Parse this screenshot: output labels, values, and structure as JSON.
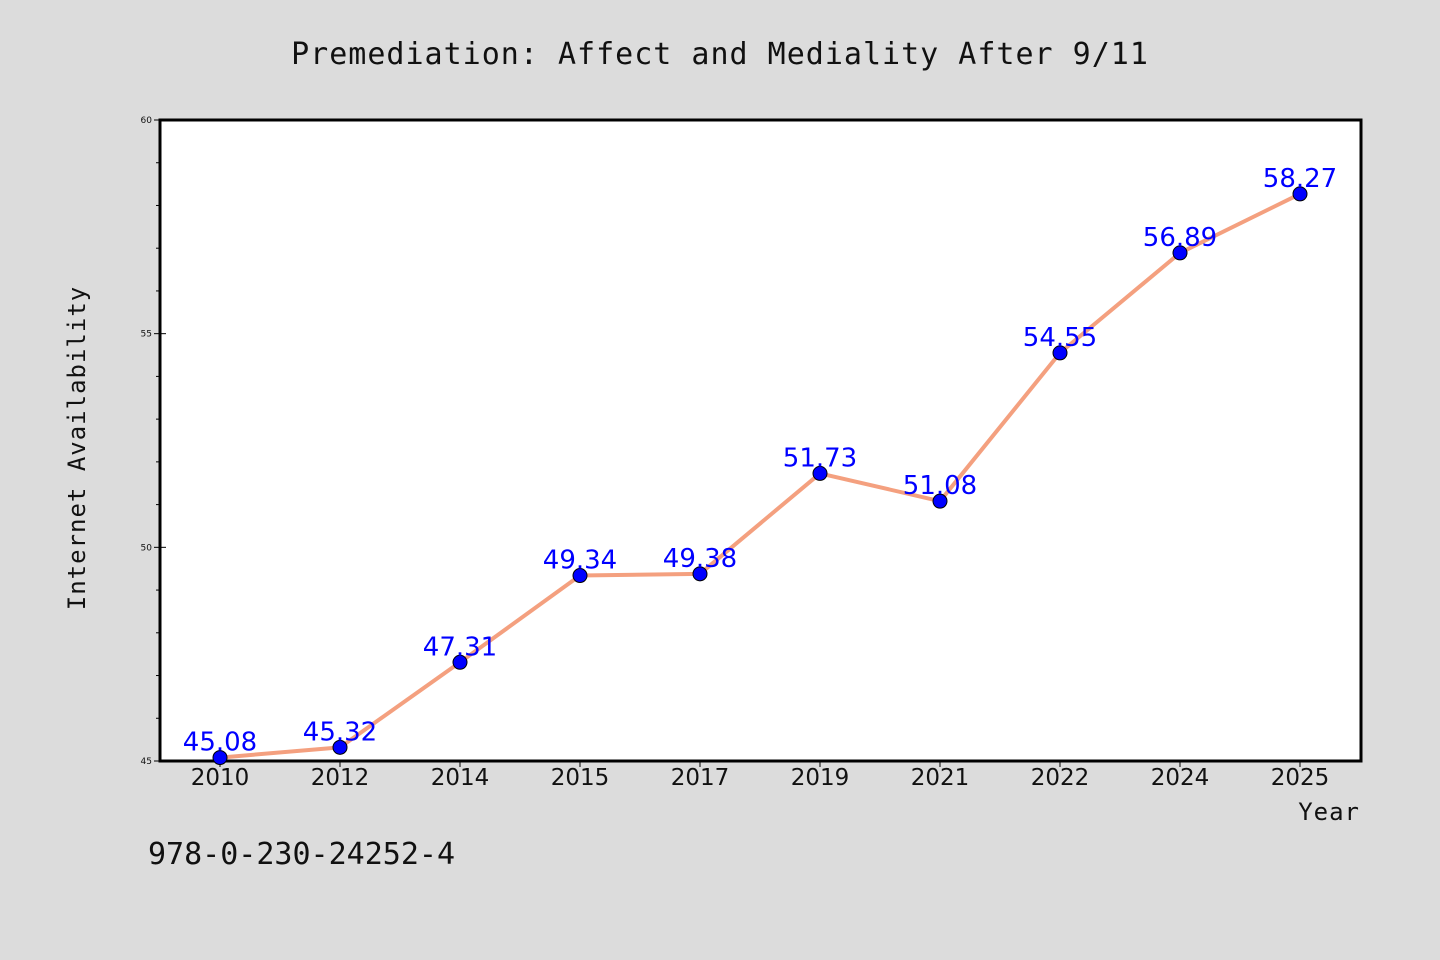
{
  "chart_data": {
    "type": "line",
    "title": "Premediation: Affect and Mediality After 9/11",
    "xlabel": "Year",
    "ylabel": "Internet Availability",
    "categories": [
      "2010",
      "2012",
      "2014",
      "2015",
      "2017",
      "2019",
      "2021",
      "2022",
      "2024",
      "2025"
    ],
    "series": [
      {
        "values": [
          45.08,
          45.32,
          47.31,
          49.34,
          49.38,
          51.73,
          51.08,
          54.55,
          56.89,
          58.27
        ]
      }
    ],
    "data_labels": [
      "45.08",
      "45.32",
      "47.31",
      "49.34",
      "49.38",
      "51.73",
      "51.08",
      "54.55",
      "56.89",
      "58.27"
    ],
    "ylim": [
      45,
      60
    ],
    "y_ticks": [
      45,
      50,
      55,
      60
    ],
    "y_tick_labels": [
      "45",
      "50",
      "55",
      "60"
    ],
    "grid": false,
    "colors": {
      "line": "#f4a07f",
      "marker": "#0000ff",
      "label": "#0000ff",
      "plot_background": "#ffffff",
      "figure_background": "#dcdcdc"
    }
  },
  "footer": {
    "isbn": "978-0-230-24252-4"
  }
}
